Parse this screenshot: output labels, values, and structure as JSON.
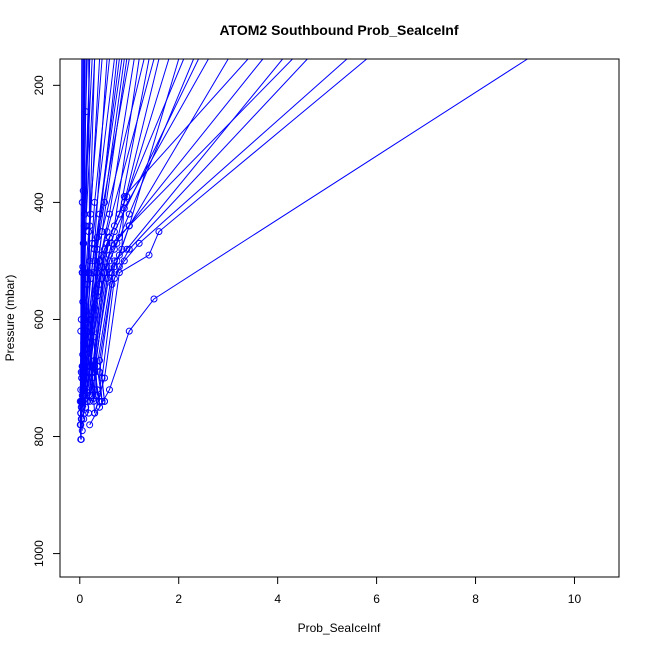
{
  "chart_data": {
    "type": "line",
    "title": "ATOM2 Southbound Prob_SeaIceInf",
    "xlabel": "Prob_SeaIceInf",
    "ylabel": "Pressure (mbar)",
    "xlim": [
      -0.4,
      10.9
    ],
    "ylim": [
      1040,
      155
    ],
    "y_reversed": true,
    "xticks": [
      0,
      2,
      4,
      6,
      8,
      10
    ],
    "xtick_labels": [
      "0",
      "2",
      "4",
      "6",
      "8",
      "10"
    ],
    "yticks": [
      200,
      400,
      600,
      800,
      1000
    ],
    "ytick_labels": [
      "200",
      "400",
      "600",
      "800",
      "1000"
    ],
    "grid": false,
    "series_color": "#0000ff",
    "series": [
      {
        "x": [
          0.02,
          0.01,
          0.02,
          0.03,
          0.05,
          0.1
        ],
        "y": [
          805,
          780,
          720,
          600,
          400,
          155
        ]
      },
      {
        "x": [
          0.03,
          0.02,
          0.04,
          0.05,
          0.07,
          0.08
        ],
        "y": [
          805,
          760,
          700,
          520,
          380,
          155
        ]
      },
      {
        "x": [
          0.02,
          0.03,
          0.04,
          0.06,
          0.12,
          0.15
        ],
        "y": [
          780,
          740,
          700,
          510,
          245,
          155
        ]
      },
      {
        "x": [
          0.05,
          0.03,
          0.06,
          0.08,
          0.1,
          0.25
        ],
        "y": [
          790,
          740,
          690,
          520,
          420,
          155
        ]
      },
      {
        "x": [
          0.08,
          0.05,
          0.1,
          0.15,
          0.22,
          0.4
        ],
        "y": [
          770,
          730,
          680,
          540,
          420,
          155
        ]
      },
      {
        "x": [
          0.1,
          0.07,
          0.15,
          0.2,
          0.3,
          0.6
        ],
        "y": [
          760,
          720,
          660,
          520,
          400,
          155
        ]
      },
      {
        "x": [
          0.12,
          0.1,
          0.2,
          0.3,
          0.4,
          0.8
        ],
        "y": [
          750,
          720,
          640,
          500,
          420,
          155
        ]
      },
      {
        "x": [
          0.15,
          0.12,
          0.25,
          0.35,
          0.5,
          0.9
        ],
        "y": [
          740,
          710,
          620,
          480,
          400,
          155
        ]
      },
      {
        "x": [
          0.18,
          0.15,
          0.22,
          0.4,
          0.6,
          1.1
        ],
        "y": [
          760,
          720,
          600,
          500,
          420,
          155
        ]
      },
      {
        "x": [
          0.2,
          0.18,
          0.3,
          0.45,
          0.7,
          1.2
        ],
        "y": [
          740,
          700,
          580,
          490,
          440,
          155
        ]
      },
      {
        "x": [
          0.25,
          0.2,
          0.35,
          0.5,
          0.8,
          1.4
        ],
        "y": [
          730,
          690,
          560,
          480,
          420,
          155
        ]
      },
      {
        "x": [
          0.3,
          0.22,
          0.4,
          0.55,
          0.9,
          1.6
        ],
        "y": [
          720,
          680,
          540,
          470,
          400,
          155
        ]
      },
      {
        "x": [
          0.28,
          0.25,
          0.45,
          0.6,
          0.95,
          1.8
        ],
        "y": [
          740,
          690,
          530,
          460,
          390,
          155
        ]
      },
      {
        "x": [
          0.32,
          0.28,
          0.5,
          0.65,
          1.0,
          2.0
        ],
        "y": [
          730,
          680,
          520,
          470,
          440,
          155
        ]
      },
      {
        "x": [
          0.35,
          0.3,
          0.55,
          0.7,
          1.0,
          2.3
        ],
        "y": [
          720,
          670,
          510,
          480,
          420,
          155
        ]
      },
      {
        "x": [
          0.4,
          0.3,
          0.6,
          0.75,
          0.9,
          2.6
        ],
        "y": [
          740,
          690,
          500,
          470,
          410,
          155
        ]
      },
      {
        "x": [
          0.45,
          0.35,
          0.65,
          0.8,
          1.0,
          3.0
        ],
        "y": [
          740,
          680,
          520,
          490,
          440,
          155
        ]
      },
      {
        "x": [
          0.5,
          0.4,
          0.7,
          0.85,
          0.9,
          3.4
        ],
        "y": [
          740,
          670,
          510,
          480,
          390,
          155
        ]
      },
      {
        "x": [
          0.3,
          0.25,
          0.5,
          0.6,
          0.8,
          3.7
        ],
        "y": [
          760,
          700,
          520,
          490,
          460,
          155
        ]
      },
      {
        "x": [
          0.4,
          0.3,
          0.55,
          0.7,
          0.95,
          4.1
        ],
        "y": [
          750,
          690,
          530,
          500,
          480,
          155
        ]
      },
      {
        "x": [
          0.35,
          0.3,
          0.6,
          0.75,
          1.0,
          4.3
        ],
        "y": [
          730,
          680,
          520,
          500,
          440,
          155
        ]
      },
      {
        "x": [
          0.45,
          0.4,
          0.65,
          0.8,
          1.0,
          4.6
        ],
        "y": [
          740,
          690,
          540,
          510,
          480,
          155
        ]
      },
      {
        "x": [
          0.5,
          0.45,
          0.7,
          0.9,
          1.2,
          5.4
        ],
        "y": [
          740,
          700,
          530,
          500,
          470,
          155
        ]
      },
      {
        "x": [
          0.3,
          0.5,
          0.8,
          1.4,
          1.6,
          5.8
        ],
        "y": [
          760,
          700,
          520,
          490,
          450,
          155
        ]
      },
      {
        "x": [
          0.2,
          0.6,
          1.0,
          1.5,
          9.05
        ],
        "y": [
          780,
          720,
          620,
          565,
          155
        ]
      },
      {
        "x": [
          0.05,
          0.04,
          0.06,
          0.08,
          0.2
        ],
        "y": [
          750,
          700,
          570,
          470,
          155
        ]
      },
      {
        "x": [
          0.06,
          0.05,
          0.1,
          0.12,
          0.3
        ],
        "y": [
          740,
          680,
          540,
          440,
          155
        ]
      },
      {
        "x": [
          0.08,
          0.06,
          0.12,
          0.18,
          0.45
        ],
        "y": [
          730,
          690,
          520,
          450,
          155
        ]
      },
      {
        "x": [
          0.1,
          0.08,
          0.18,
          0.25,
          0.7
        ],
        "y": [
          720,
          670,
          520,
          470,
          155
        ]
      },
      {
        "x": [
          0.12,
          0.1,
          0.22,
          0.3,
          0.85
        ],
        "y": [
          735,
          660,
          530,
          480,
          155
        ]
      },
      {
        "x": [
          0.15,
          0.12,
          0.28,
          0.35,
          1.0
        ],
        "y": [
          725,
          650,
          520,
          460,
          155
        ]
      },
      {
        "x": [
          0.22,
          0.18,
          0.35,
          0.45,
          1.3
        ],
        "y": [
          730,
          650,
          520,
          450,
          155
        ]
      },
      {
        "x": [
          0.25,
          0.2,
          0.4,
          0.55,
          1.5
        ],
        "y": [
          720,
          640,
          500,
          450,
          155
        ]
      },
      {
        "x": [
          0.28,
          0.22,
          0.45,
          0.6,
          2.1
        ],
        "y": [
          735,
          630,
          510,
          460,
          155
        ]
      },
      {
        "x": [
          0.35,
          0.28,
          0.5,
          0.7,
          2.4
        ],
        "y": [
          720,
          630,
          520,
          450,
          155
        ]
      },
      {
        "x": [
          0.02,
          0.03,
          0.05,
          0.06
        ],
        "y": [
          760,
          690,
          520,
          155
        ]
      },
      {
        "x": [
          0.04,
          0.05,
          0.07,
          0.08
        ],
        "y": [
          770,
          680,
          470,
          155
        ]
      },
      {
        "x": [
          0.03,
          0.06,
          0.09,
          0.13
        ],
        "y": [
          750,
          660,
          440,
          155
        ]
      },
      {
        "x": [
          0.05,
          0.08,
          0.2,
          0.3
        ],
        "y": [
          740,
          640,
          440,
          155
        ]
      },
      {
        "x": [
          0.08,
          0.12,
          0.3,
          0.55
        ],
        "y": [
          720,
          610,
          470,
          155
        ]
      },
      {
        "x": [
          0.1,
          0.15,
          0.35,
          0.75
        ],
        "y": [
          710,
          620,
          480,
          155
        ]
      },
      {
        "x": [
          0.12,
          0.2,
          0.45,
          0.95
        ],
        "y": [
          700,
          600,
          450,
          155
        ]
      },
      {
        "x": [
          0.06,
          0.1,
          0.2,
          0.18
        ],
        "y": [
          720,
          620,
          500,
          155
        ]
      },
      {
        "x": [
          0.07,
          0.09,
          0.1
        ],
        "y": [
          730,
          600,
          155
        ]
      },
      {
        "x": [
          0.01,
          0.02,
          0.04
        ],
        "y": [
          740,
          620,
          155
        ]
      },
      {
        "x": [
          0.03,
          0.05,
          0.2
        ],
        "y": [
          770,
          680,
          155
        ]
      }
    ]
  }
}
